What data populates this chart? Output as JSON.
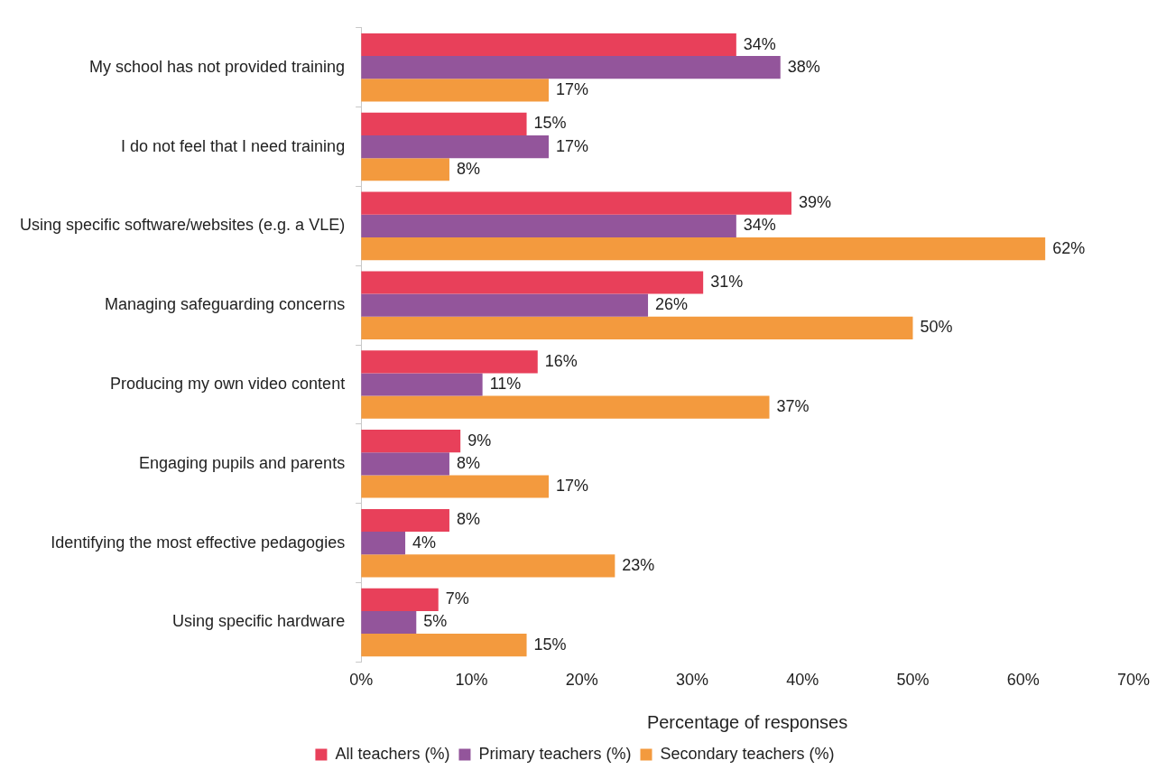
{
  "chart_data": {
    "type": "bar",
    "orientation": "horizontal",
    "xlabel": "Percentage of responses",
    "categories": [
      "My school has not provided training",
      "I do not feel that I need training",
      "Using specific software/websites (e.g. a VLE)",
      "Managing safeguarding concerns",
      "Producing my own video content",
      "Engaging pupils and parents",
      "Identifying the most effective pedagogies",
      "Using specific hardware"
    ],
    "series": [
      {
        "name": "All teachers (%)",
        "color": "#e8405a",
        "values": [
          34,
          15,
          39,
          31,
          16,
          9,
          8,
          7
        ],
        "value_labels": [
          "34%",
          "15%",
          "39%",
          "31%",
          "16%",
          "9%",
          "8%",
          "7%"
        ]
      },
      {
        "name": "Primary teachers (%)",
        "color": "#93559b",
        "values": [
          38,
          17,
          34,
          26,
          11,
          8,
          4,
          5
        ],
        "value_labels": [
          "38%",
          "17%",
          "34%",
          "26%",
          "11%",
          "8%",
          "4%",
          "5%"
        ]
      },
      {
        "name": "Secondary teachers (%)",
        "color": "#f39a3e",
        "values": [
          17,
          8,
          62,
          50,
          37,
          17,
          23,
          15
        ],
        "value_labels": [
          "17%",
          "8%",
          "62%",
          "50%",
          "37%",
          "17%",
          "23%",
          "15%"
        ]
      }
    ],
    "xlim": [
      0,
      70
    ],
    "xticks": [
      {
        "value": 0,
        "label": "0%"
      },
      {
        "value": 10,
        "label": "10%"
      },
      {
        "value": 20,
        "label": "20%"
      },
      {
        "value": 30,
        "label": "30%"
      },
      {
        "value": 40,
        "label": "40%"
      },
      {
        "value": 50,
        "label": "50%"
      },
      {
        "value": 60,
        "label": "60%"
      },
      {
        "value": 70,
        "label": "70%"
      }
    ],
    "grid": false,
    "legend": "bottom"
  }
}
